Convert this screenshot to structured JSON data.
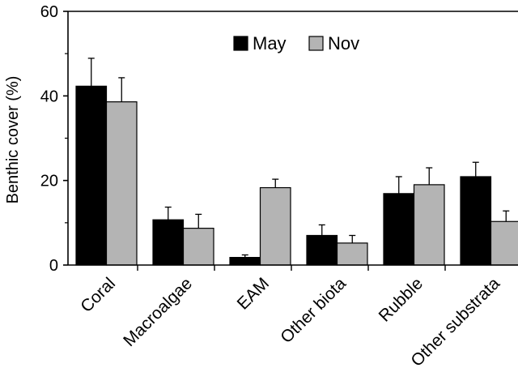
{
  "chart_data": {
    "type": "bar",
    "title": "",
    "xlabel": "",
    "ylabel": "Benthic cover (%)",
    "ylim": [
      0,
      60
    ],
    "yticks": [
      0,
      20,
      40,
      60
    ],
    "grid": false,
    "legend_position": "top-center",
    "categories": [
      "Coral",
      "Macroalgae",
      "EAM",
      "Other biota",
      "Rubble",
      "Other substrata"
    ],
    "series": [
      {
        "name": "May",
        "color": "#000000",
        "values": [
          42.3,
          10.7,
          1.8,
          7.0,
          16.9,
          20.9
        ],
        "errors": [
          6.6,
          3.0,
          0.6,
          2.5,
          4.0,
          3.4
        ]
      },
      {
        "name": "Nov",
        "color": "#b4b4b4",
        "values": [
          38.6,
          8.7,
          18.3,
          5.2,
          19.0,
          10.3
        ],
        "errors": [
          5.7,
          3.3,
          2.0,
          1.8,
          4.0,
          2.5
        ]
      }
    ]
  }
}
